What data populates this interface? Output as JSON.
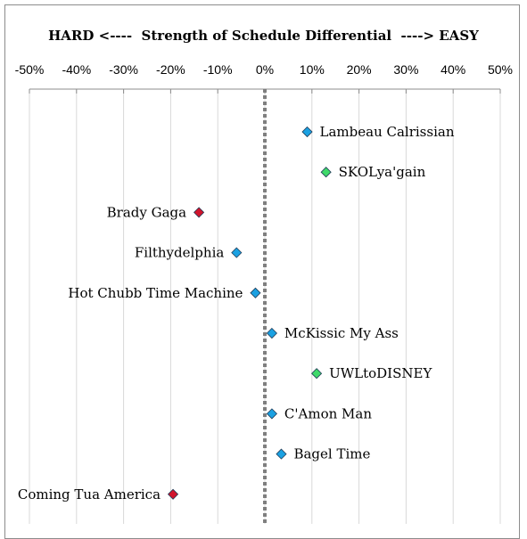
{
  "chart_data": {
    "type": "scatter",
    "title": "HARD <----  Strength of Schedule Differential  ----> EASY",
    "xlabel": "",
    "ylabel": "",
    "xlim": [
      -50,
      50
    ],
    "x_ticks": [
      -50,
      -40,
      -30,
      -20,
      -10,
      0,
      10,
      20,
      30,
      40,
      50
    ],
    "tick_suffix": "%",
    "grid": "vertical",
    "zero_line": "dotted",
    "points": [
      {
        "label": "Lambeau Calrissian",
        "x": 9,
        "color": "#1ba1e2"
      },
      {
        "label": "SKOLya'gain",
        "x": 13,
        "color": "#3fd96a"
      },
      {
        "label": "Brady Gaga",
        "x": -14,
        "color": "#d0142c"
      },
      {
        "label": "Filthydelphia",
        "x": -6,
        "color": "#1ba1e2"
      },
      {
        "label": "Hot Chubb Time Machine",
        "x": -2,
        "color": "#1ba1e2"
      },
      {
        "label": "McKissic My Ass",
        "x": 1.5,
        "color": "#1ba1e2"
      },
      {
        "label": "UWLtoDISNEY",
        "x": 11,
        "color": "#3fd96a"
      },
      {
        "label": "C'Amon Man",
        "x": 1.5,
        "color": "#1ba1e2"
      },
      {
        "label": "Bagel Time",
        "x": 3.5,
        "color": "#1ba1e2"
      },
      {
        "label": "Coming Tua America",
        "x": -19.5,
        "color": "#d0142c"
      }
    ]
  }
}
